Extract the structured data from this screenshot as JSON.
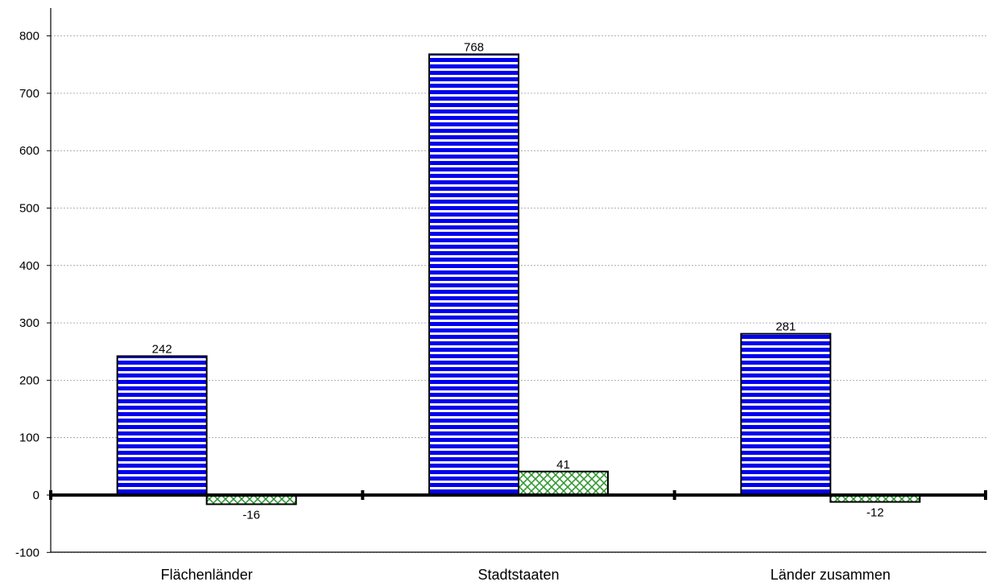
{
  "chart_data": {
    "type": "bar",
    "categories": [
      "Flächenländer",
      "Stadtstaaten",
      "Länder zusammen"
    ],
    "series": [
      {
        "values": [
          242,
          768,
          281
        ],
        "color": "#0000ee",
        "pattern": "horizontal-stripes"
      },
      {
        "values": [
          -16,
          41,
          -12
        ],
        "color": "#339933",
        "pattern": "crosshatch"
      }
    ],
    "y_ticks": [
      -100,
      0,
      100,
      200,
      300,
      400,
      500,
      600,
      700,
      800
    ],
    "ylim": [
      -100,
      850
    ],
    "grid": true,
    "legend": "none",
    "title": "",
    "xlabel": "",
    "ylabel": ""
  }
}
